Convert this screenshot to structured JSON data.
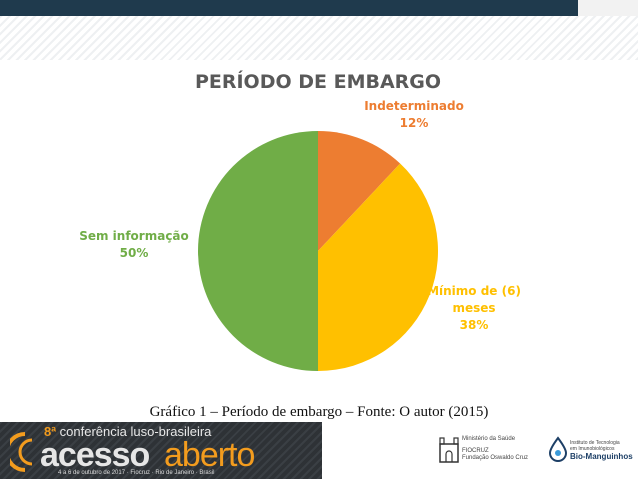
{
  "chart_data": {
    "type": "pie",
    "title": "PERÍODO DE EMBARGO",
    "slices": [
      {
        "label": "Indeterminado",
        "value": 12,
        "value_label": "12%",
        "color": "#ed7d31"
      },
      {
        "label": "Mínimo de (6) meses",
        "label_lines": [
          "Mínimo de (6)",
          "meses"
        ],
        "value": 38,
        "value_label": "38%",
        "color": "#ffc000"
      },
      {
        "label": "Sem informação",
        "value": 50,
        "value_label": "50%",
        "color": "#70ad47"
      }
    ],
    "start_angle_deg": 0,
    "direction": "clockwise",
    "legend": "none"
  },
  "caption": "Gráfico 1 – Período de embargo – Fonte: O autor (2015)",
  "footer": {
    "conference_edition_prefix": "8ª",
    "conference_edition_rest": "conferência luso-brasileira",
    "conference_name_a": "acesso",
    "conference_name_b": "aberto",
    "conference_dates": "4 a 6 de outubro de 2017 · Fiocruz · Rio de Janeiro · Brasil",
    "institution_1_line1": "Ministério da Saúde",
    "institution_1_line2": "FIOCRUZ",
    "institution_1_line3": "Fundação Oswaldo Cruz",
    "institution_2_line1": "Instituto de Tecnologia",
    "institution_2_line2": "em Imunobiológicos",
    "institution_2_line3": "Bio-Manguinhos"
  },
  "colors": {
    "top_bar": "#1f3a4d",
    "conference_accent": "#f39c1e",
    "title_gray": "#595959"
  }
}
